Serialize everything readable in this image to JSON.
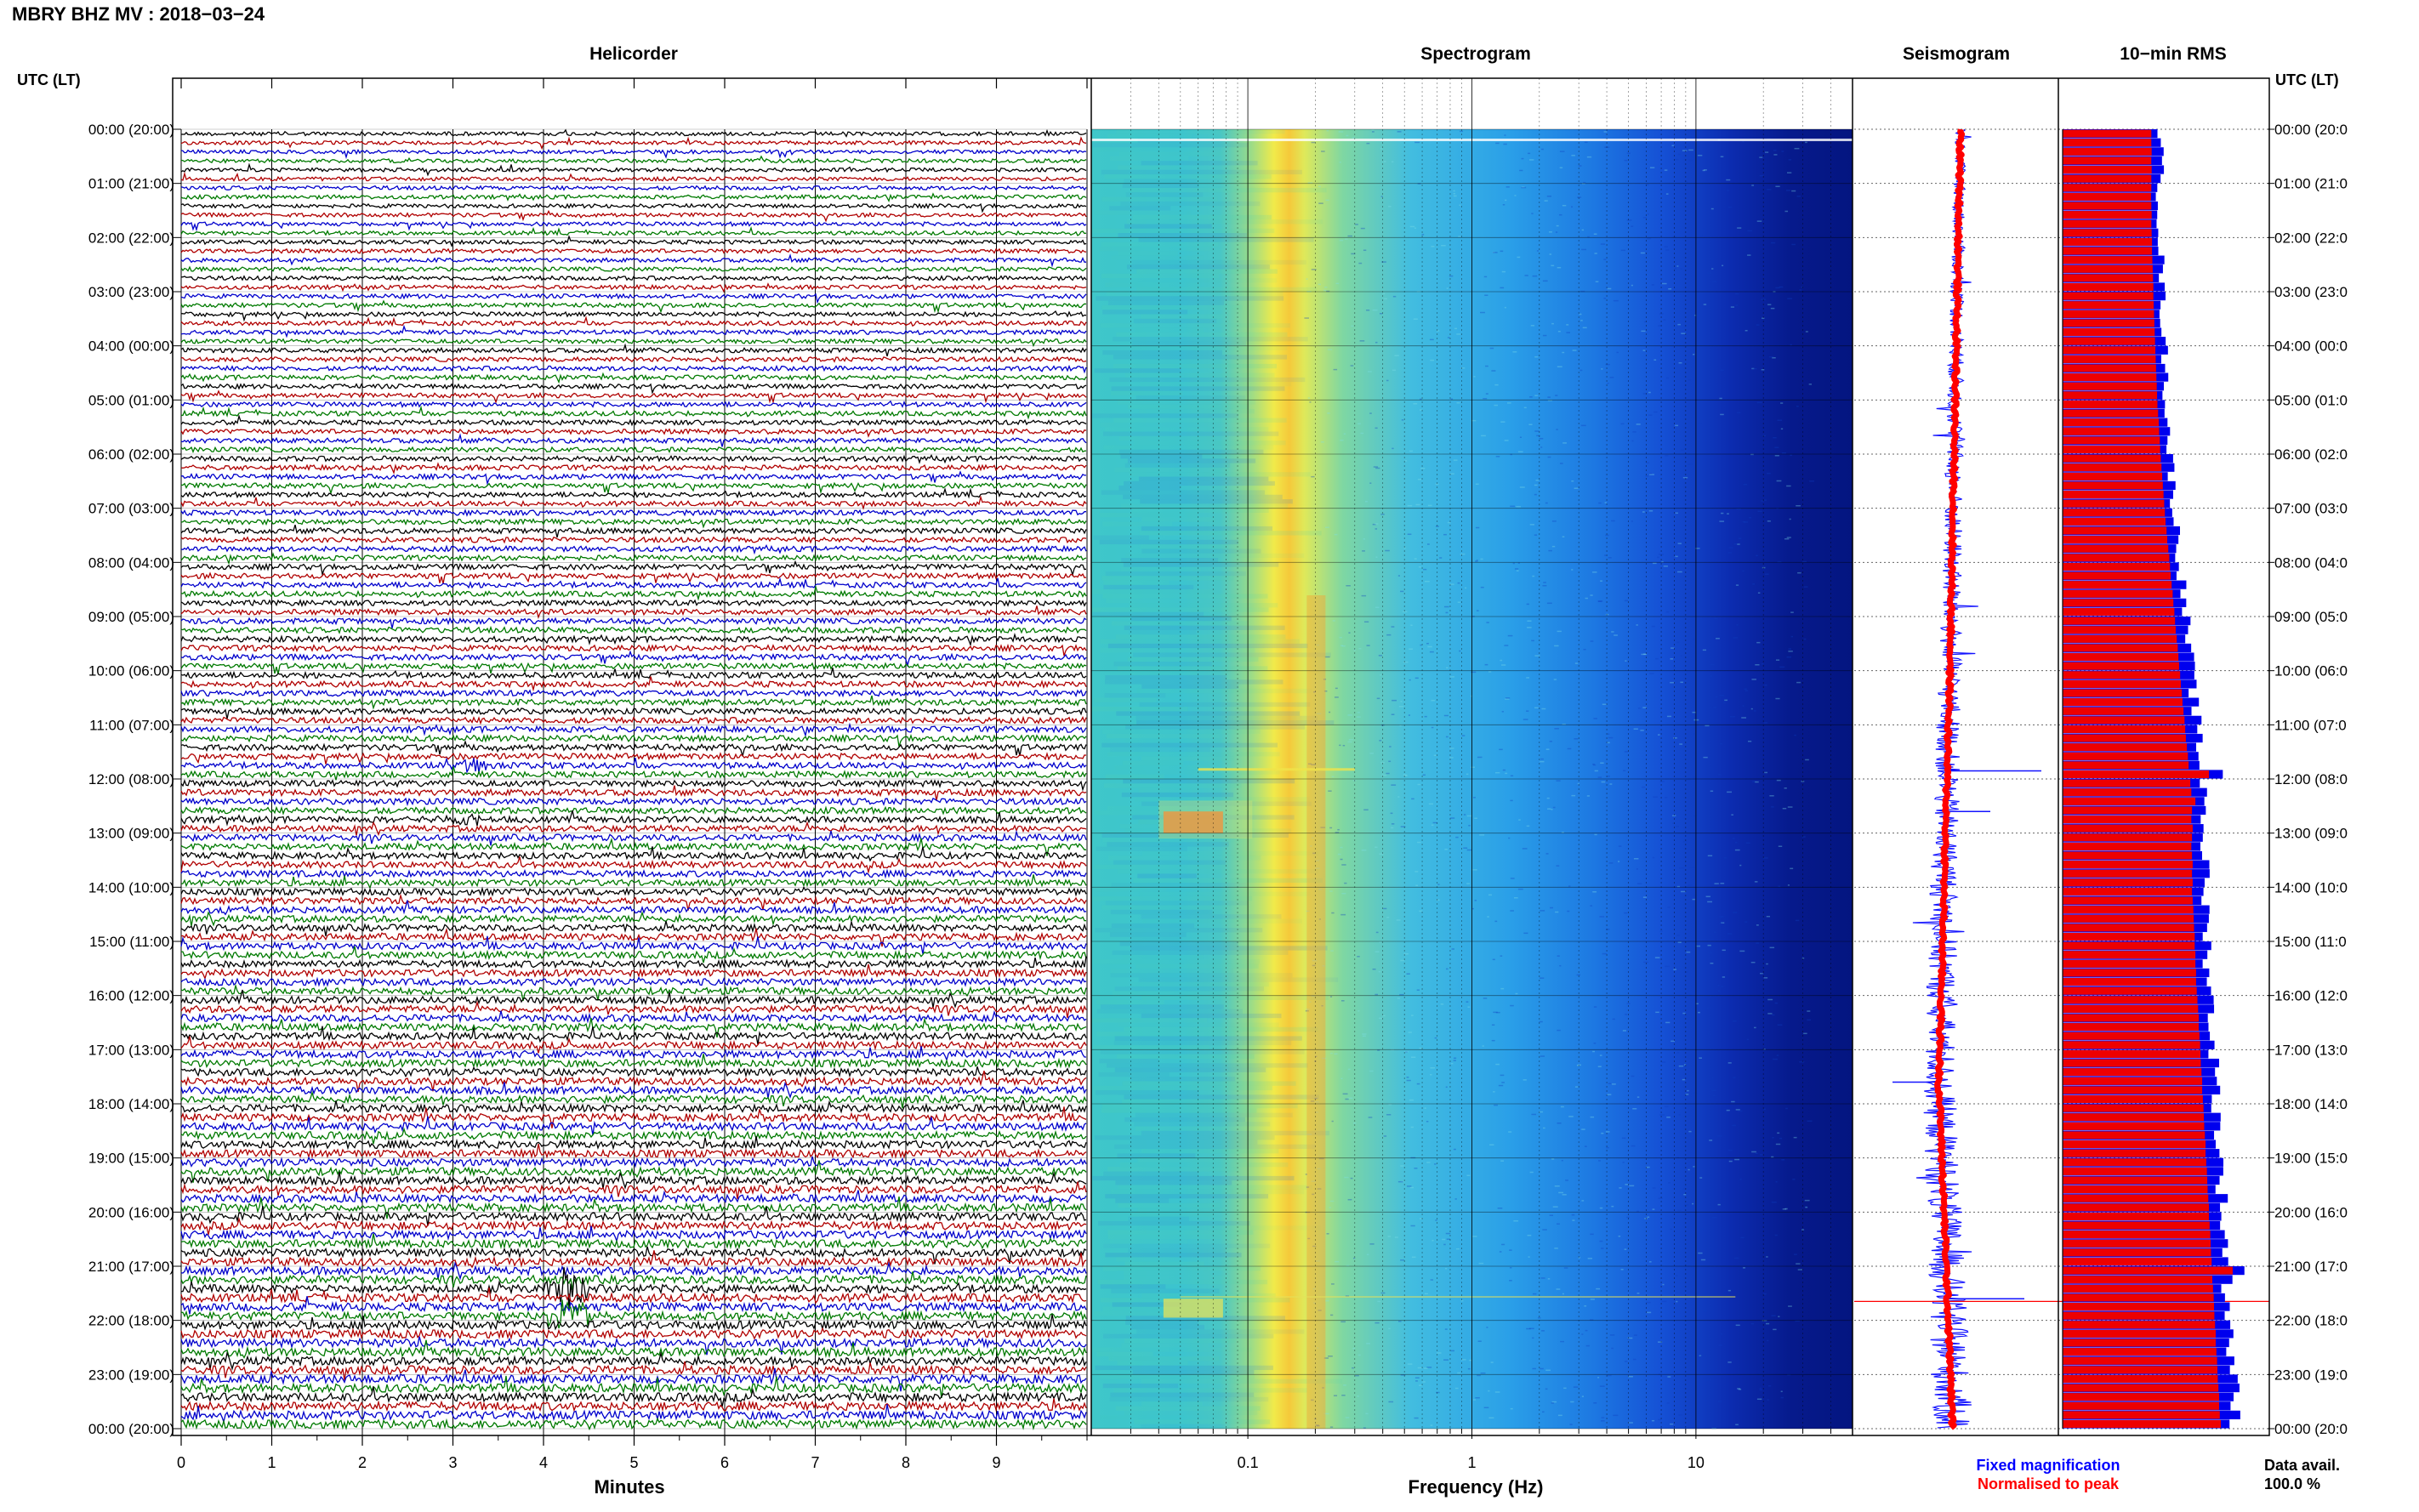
{
  "header": {
    "station_title": "MBRY BHZ MV : 2018−03−24",
    "left_axis_title": "UTC (LT)",
    "right_axis_title": "UTC (LT)"
  },
  "panels": {
    "helicorder_title": "Helicorder",
    "spectrogram_title": "Spectrogram",
    "seismogram_title": "Seismogram",
    "rms_title": "10−min RMS"
  },
  "time_labels": [
    "00:00 (20:00)",
    "01:00 (21:00)",
    "02:00 (22:00)",
    "03:00 (23:00)",
    "04:00 (00:00)",
    "05:00 (01:00)",
    "06:00 (02:00)",
    "07:00 (03:00)",
    "08:00 (04:00)",
    "09:00 (05:00)",
    "10:00 (06:00)",
    "11:00 (07:00)",
    "12:00 (08:00)",
    "13:00 (09:00)",
    "14:00 (10:00)",
    "15:00 (11:00)",
    "16:00 (12:00)",
    "17:00 (13:00)",
    "18:00 (14:00)",
    "19:00 (15:00)",
    "20:00 (16:00)",
    "21:00 (17:00)",
    "22:00 (18:00)",
    "23:00 (19:00)",
    "00:00 (20:00)"
  ],
  "right_time_labels": [
    "00:00 (20:0",
    "01:00 (21:0",
    "02:00 (22:0",
    "03:00 (23:0",
    "04:00 (00:0",
    "05:00 (01:0",
    "06:00 (02:0",
    "07:00 (03:0",
    "08:00 (04:0",
    "09:00 (05:0",
    "10:00 (06:0",
    "11:00 (07:0",
    "12:00 (08:0",
    "13:00 (09:0",
    "14:00 (10:0",
    "15:00 (11:0",
    "16:00 (12:0",
    "17:00 (13:0",
    "18:00 (14:0",
    "19:00 (15:0",
    "20:00 (16:0",
    "21:00 (17:0",
    "22:00 (18:0",
    "23:00 (19:0",
    "00:00 (20:0"
  ],
  "helicorder_axis": {
    "xlabel": "Minutes",
    "ticks": [
      "0",
      "1",
      "2",
      "3",
      "4",
      "5",
      "6",
      "7",
      "8",
      "9"
    ]
  },
  "spectrogram_axis": {
    "xlabel": "Frequency (Hz)",
    "ticks": [
      "0.1",
      "1",
      "10"
    ]
  },
  "legend": {
    "fixed": "Fixed magnification",
    "normalised": "Normalised to peak",
    "fixed_color": "#0000ff",
    "normalised_color": "#ff0000"
  },
  "data_avail": {
    "label": "Data avail.",
    "value": "100.0 %"
  },
  "colors": {
    "trace_colors": [
      "#000000",
      "#b00000",
      "#0000cc",
      "#007a00"
    ],
    "rms_bar": "#ee0000",
    "rms_outline": "#0000ee"
  },
  "chart_data": [
    {
      "type": "line",
      "title": "Helicorder",
      "xlabel": "Minutes",
      "ylabel": "UTC (LT)",
      "xlim": [
        0,
        10
      ],
      "x_ticks": [
        0,
        1,
        2,
        3,
        4,
        5,
        6,
        7,
        8,
        9
      ],
      "rows_per_day": 144,
      "minutes_per_row": 10,
      "colors_cycle": [
        "black",
        "red",
        "blue",
        "green"
      ],
      "events": [
        {
          "time": "11:40",
          "minute": 3.2,
          "amplitude": "moderate"
        },
        {
          "time": "12:40",
          "minute": 3.1,
          "amplitude": "moderate"
        },
        {
          "time": "21:20",
          "minute": 4.3,
          "amplitude": "large"
        },
        {
          "time": "21:50",
          "minute": 4.3,
          "amplitude": "large"
        }
      ],
      "grid": true
    },
    {
      "type": "heatmap",
      "title": "Spectrogram",
      "xlabel": "Frequency (Hz)",
      "x_scale": "log",
      "xlim": [
        0.02,
        50
      ],
      "x_ticks": [
        0.1,
        1,
        10
      ],
      "dominant_band_hz": [
        0.15,
        0.3
      ],
      "peak_hz": 0.2
    },
    {
      "type": "line",
      "title": "Seismogram",
      "series": [
        {
          "name": "Fixed magnification",
          "color": "blue"
        },
        {
          "name": "Normalised to peak",
          "color": "red"
        }
      ]
    },
    {
      "type": "bar",
      "title": "10−min RMS",
      "orientation": "horizontal",
      "bins_per_hour": 6,
      "hours": 24,
      "relative_rms": [
        0.4,
        0.4,
        0.41,
        0.4,
        0.41,
        0.4,
        0.4,
        0.39,
        0.4,
        0.41,
        0.4,
        0.41,
        0.42,
        0.42,
        0.43,
        0.44,
        0.45,
        0.46,
        0.46,
        0.47,
        0.48,
        0.49,
        0.5,
        0.51,
        0.52,
        0.53,
        0.54,
        0.55,
        0.56,
        0.57,
        0.58,
        0.6,
        0.62,
        0.63,
        0.65,
        0.66,
        0.68,
        0.7,
        0.72,
        0.74,
        0.76,
        0.78,
        0.8,
        0.82,
        0.85,
        0.87,
        0.9,
        0.93,
        0.95,
        0.97,
        1.0,
        1.03,
        1.05,
        1.08,
        1.1,
        1.12,
        1.15,
        1.18,
        1.2,
        1.22,
        1.25,
        1.27,
        1.3,
        1.32,
        1.35,
        1.38,
        1.4,
        1.42,
        1.45,
        1.48,
        1.5,
        2.1,
        1.55,
        1.58,
        1.7,
        1.6,
        1.58,
        1.62,
        1.6,
        1.58,
        1.6,
        1.62,
        1.6,
        1.62,
        1.6,
        1.62,
        1.64,
        1.65,
        1.66,
        1.68,
        1.68,
        1.7,
        1.7,
        1.72,
        1.72,
        1.74,
        1.76,
        1.78,
        1.8,
        1.8,
        1.82,
        1.84,
        1.85,
        1.86,
        1.88,
        1.9,
        1.9,
        1.92,
        1.94,
        1.95,
        1.96,
        1.98,
        2.0,
        2.0,
        2.02,
        2.04,
        2.05,
        2.06,
        2.08,
        2.1,
        2.1,
        2.12,
        2.14,
        2.15,
        2.16,
        2.18,
        2.8,
        2.2,
        2.22,
        2.24,
        2.25,
        2.26,
        2.28,
        2.3,
        2.3,
        2.32,
        2.34,
        2.35,
        2.36,
        2.38,
        2.4,
        2.4,
        2.42,
        2.45
      ]
    }
  ]
}
